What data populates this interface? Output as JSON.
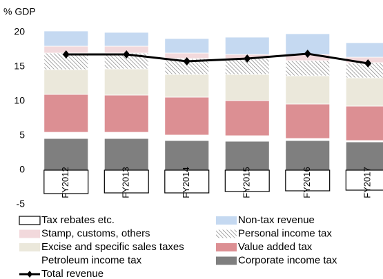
{
  "chart_data": {
    "type": "bar",
    "stacked": true,
    "ylabel": "% GDP",
    "categories": [
      "FY2012",
      "FY2013",
      "FY2014",
      "FY2015",
      "FY2016",
      "FY2017"
    ],
    "ylim": [
      -5,
      20
    ],
    "yticks": [
      -5,
      0,
      5,
      10,
      15,
      20
    ],
    "series": [
      {
        "name": "Tax rebates etc.",
        "color": "#ffffff",
        "values": [
          -3.4,
          -3.3,
          -3.3,
          -3.1,
          -3.0,
          -2.9
        ]
      },
      {
        "name": "Non-tax revenue",
        "color": "#c5d9f1",
        "values": [
          2.2,
          2.0,
          2.1,
          2.5,
          3.0,
          2.1
        ]
      },
      {
        "name": "Stamp, customs, others",
        "color": "#f2d9dc",
        "values": [
          1.0,
          1.0,
          0.8,
          0.6,
          0.9,
          0.8
        ]
      },
      {
        "name": "Personal income tax",
        "color": "#808080",
        "hatch": true,
        "values": [
          2.4,
          2.3,
          2.3,
          2.3,
          2.2,
          2.2
        ]
      },
      {
        "name": "Excise and specific sales taxes",
        "color": "#ebe8db",
        "values": [
          3.6,
          3.8,
          3.3,
          3.8,
          4.1,
          4.1
        ]
      },
      {
        "name": "Value added tax",
        "color": "#dc8f93",
        "values": [
          5.5,
          5.4,
          5.5,
          5.1,
          5.0,
          5.0
        ]
      },
      {
        "name": "Petroleum income tax",
        "color": "#ffffff",
        "values": [
          0.9,
          0.9,
          0.8,
          0.8,
          0.3,
          0.2
        ]
      },
      {
        "name": "Corporate income tax",
        "color": "#7f7f7f",
        "values": [
          4.6,
          4.6,
          4.3,
          4.2,
          4.3,
          4.1
        ]
      },
      {
        "name": "Total revenue",
        "type": "line",
        "color": "#000000",
        "values": [
          16.8,
          16.8,
          15.8,
          16.2,
          16.9,
          15.5
        ]
      }
    ]
  }
}
